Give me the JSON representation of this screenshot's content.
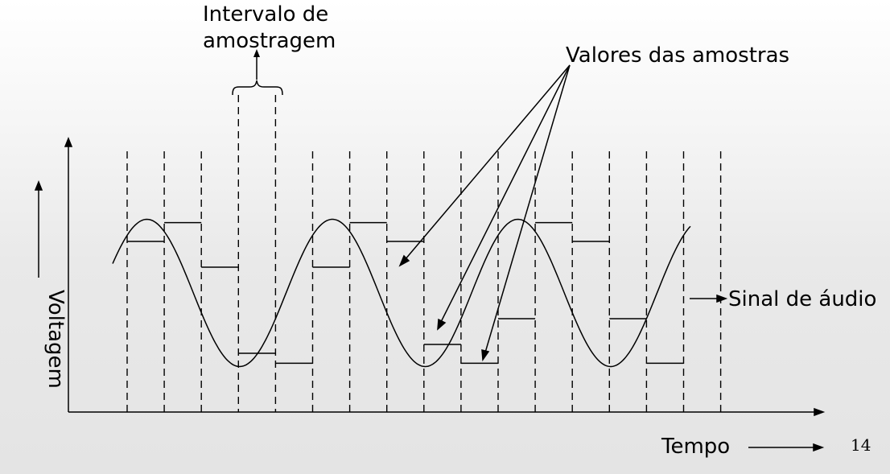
{
  "labels": {
    "interval_line1": "Intervalo de",
    "interval_line2": "amostragem",
    "sample_values": "Valores das amostras",
    "audio_signal": "Sinal de áudio",
    "time": "Tempo",
    "voltage": "Voltagem"
  },
  "page_number": "14",
  "sample_values": [
    0.7,
    0.955,
    0.35,
    -0.82,
    -0.955,
    0.35,
    0.955,
    0.7,
    -0.7,
    -0.955,
    -0.35,
    0.955,
    0.7,
    -0.35,
    -0.955
  ]
}
